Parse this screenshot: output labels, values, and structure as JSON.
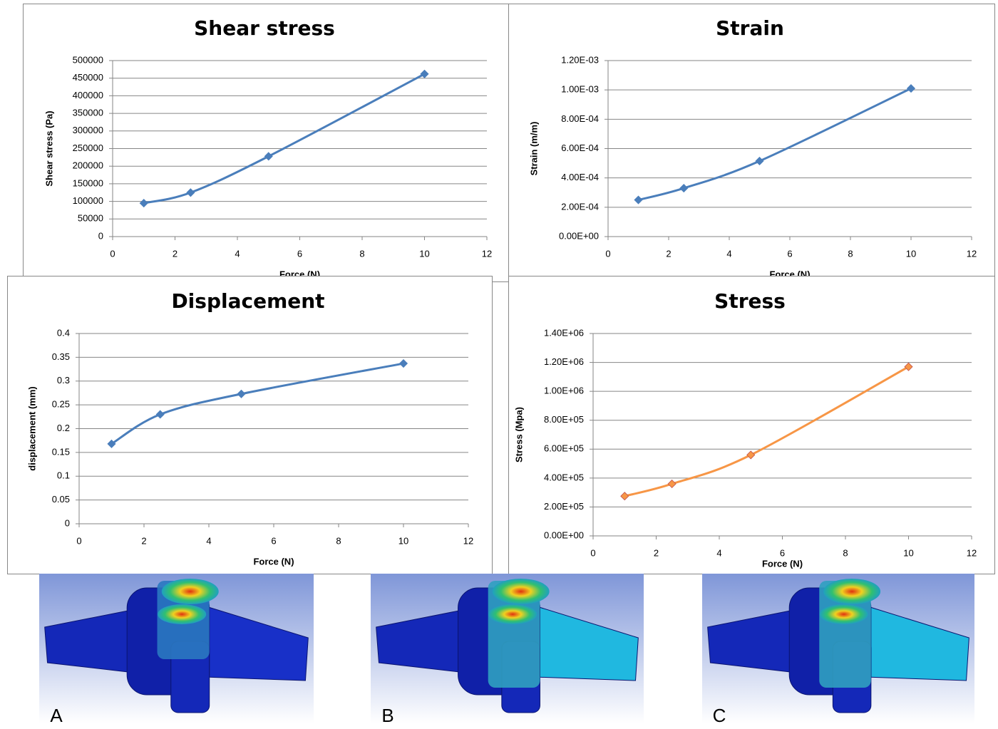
{
  "chart_data": [
    {
      "type": "line",
      "title": "Shear stress",
      "x_label": "Force (N)",
      "y_label": "Shear stress (Pa)",
      "x": [
        1,
        2.5,
        5,
        10
      ],
      "series": [
        {
          "name": "Shear stress",
          "color": "#4a7ebb",
          "values": [
            95000,
            125000,
            228000,
            462000
          ]
        }
      ],
      "xlim": [
        0,
        12
      ],
      "xticks": [
        0,
        2,
        4,
        6,
        8,
        10,
        12
      ],
      "ylim": [
        0,
        500000
      ],
      "yticks": [
        0,
        50000,
        100000,
        150000,
        200000,
        250000,
        300000,
        350000,
        400000,
        450000,
        500000
      ],
      "grid": true
    },
    {
      "type": "line",
      "title": "Strain",
      "x_label": "Force (N)",
      "y_label": "Strain (m/m)",
      "x": [
        1,
        2.5,
        5,
        10
      ],
      "series": [
        {
          "name": "Strain",
          "color": "#4a7ebb",
          "values": [
            0.00025,
            0.00033,
            0.000515,
            0.00101
          ]
        }
      ],
      "xlim": [
        0,
        12
      ],
      "xticks": [
        0,
        2,
        4,
        6,
        8,
        10,
        12
      ],
      "ylim": [
        0,
        0.0012
      ],
      "yticks": [
        {
          "value": 0,
          "label": "0.00E+00"
        },
        {
          "value": 0.0002,
          "label": "2.00E-04"
        },
        {
          "value": 0.0004,
          "label": "4.00E-04"
        },
        {
          "value": 0.0006,
          "label": "6.00E-04"
        },
        {
          "value": 0.0008,
          "label": "8.00E-04"
        },
        {
          "value": 0.001,
          "label": "1.00E-03"
        },
        {
          "value": 0.0012,
          "label": "1.20E-03"
        }
      ],
      "grid": true
    },
    {
      "type": "line",
      "title": "Displacement",
      "x_label": "Force (N)",
      "y_label": "displacement (mm)",
      "x": [
        1,
        2.5,
        5,
        10
      ],
      "series": [
        {
          "name": "Displacement",
          "color": "#4a7ebb",
          "values": [
            0.168,
            0.23,
            0.273,
            0.337
          ]
        }
      ],
      "xlim": [
        0,
        12
      ],
      "xticks": [
        0,
        2,
        4,
        6,
        8,
        10,
        12
      ],
      "ylim": [
        0,
        0.4
      ],
      "yticks": [
        0,
        0.05,
        0.1,
        0.15,
        0.2,
        0.25,
        0.3,
        0.35,
        0.4
      ],
      "grid": true
    },
    {
      "type": "line",
      "title": "Stress",
      "x_label": "Force (N)",
      "y_label": "Stress (Mpa)",
      "x": [
        1,
        2.5,
        5,
        10
      ],
      "series": [
        {
          "name": "Stress",
          "color": "#f79646",
          "values": [
            275000,
            360000,
            560000,
            1170000
          ]
        }
      ],
      "xlim": [
        0,
        12
      ],
      "xticks": [
        0,
        2,
        4,
        6,
        8,
        10,
        12
      ],
      "ylim": [
        0,
        1400000
      ],
      "yticks": [
        {
          "value": 0,
          "label": "0.00E+00"
        },
        {
          "value": 200000,
          "label": "2.00E+05"
        },
        {
          "value": 400000,
          "label": "4.00E+05"
        },
        {
          "value": 600000,
          "label": "6.00E+05"
        },
        {
          "value": 800000,
          "label": "8.00E+05"
        },
        {
          "value": 1000000,
          "label": "1.00E+06"
        },
        {
          "value": 1200000,
          "label": "1.20E+06"
        },
        {
          "value": 1400000,
          "label": "1.40E+06"
        }
      ],
      "grid": true
    }
  ],
  "panels": [
    {
      "label": "A"
    },
    {
      "label": "B"
    },
    {
      "label": "C"
    }
  ]
}
